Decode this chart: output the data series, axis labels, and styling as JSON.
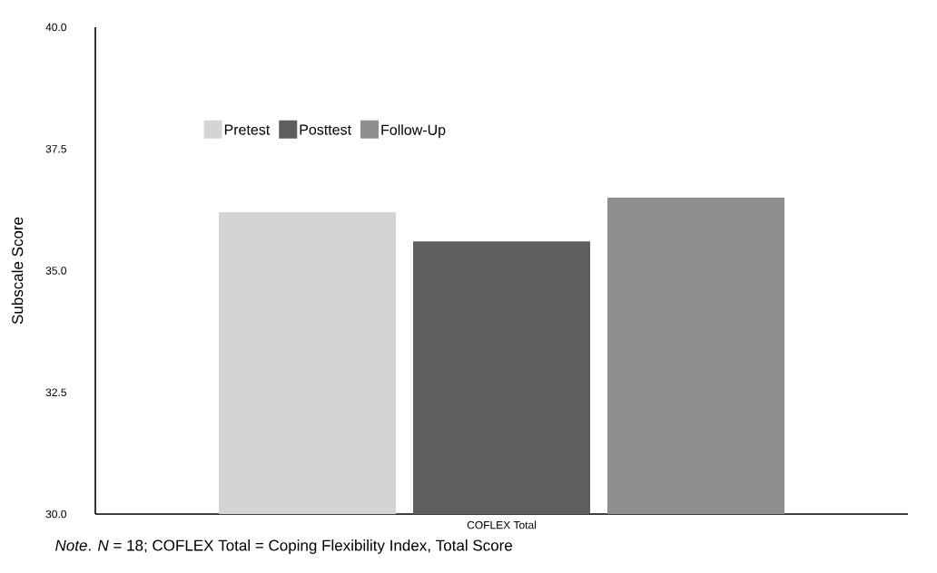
{
  "chart_data": {
    "type": "bar",
    "ylabel": "Subscale Score",
    "categories": [
      "COFLEX Total"
    ],
    "series": [
      {
        "name": "Pretest",
        "color": "#d4d4d4",
        "values": [
          36.2
        ]
      },
      {
        "name": "Posttest",
        "color": "#5f5f5f",
        "values": [
          35.6
        ]
      },
      {
        "name": "Follow-Up",
        "color": "#8f8f8f",
        "values": [
          36.5
        ]
      }
    ],
    "ylim": [
      30,
      40
    ],
    "yticks": [
      {
        "value": 30,
        "label": "30.0"
      },
      {
        "value": 32.5,
        "label": "32.5"
      },
      {
        "value": 35,
        "label": "35.0"
      },
      {
        "value": 37.5,
        "label": "37.5"
      },
      {
        "value": 40,
        "label": "40.0"
      }
    ],
    "legend": "top",
    "grid": false,
    "annotations": [
      "*Note*. *N* = 18; COFLEX Total = Coping Flexibility Index, Total Score"
    ]
  }
}
